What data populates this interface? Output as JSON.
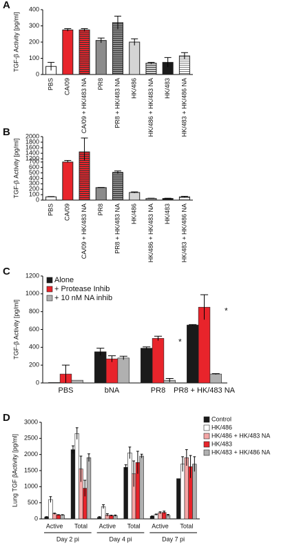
{
  "chart_data": [
    {
      "type": "bar",
      "panel": "A",
      "ylabel": "TGF-β Activity [pg/ml]",
      "categories": [
        "PBS",
        "CA/09",
        "CA/09 + HK/483 NA",
        "PR8",
        "PR8 + HK/483 NA",
        "HK/486",
        "HK/486 + HK/483 NA",
        "HK/483",
        "HK/483 + HK/486 NA"
      ],
      "values": [
        50,
        275,
        275,
        210,
        320,
        200,
        70,
        75,
        115
      ],
      "errors": [
        25,
        8,
        8,
        15,
        40,
        20,
        5,
        30,
        20
      ],
      "colors": [
        "#ffffff",
        "#e8242b",
        "#e8242b",
        "#8c8c8c",
        "#8c8c8c",
        "#d4d4d4",
        "#d4d4d4",
        "#1a1a1a",
        "#ffffff"
      ],
      "hatched": [
        false,
        false,
        true,
        false,
        true,
        false,
        true,
        false,
        true
      ],
      "ylim": [
        0,
        400
      ],
      "yticks": [
        0,
        100,
        200,
        300,
        400
      ]
    },
    {
      "type": "bar",
      "panel": "B",
      "ylabel": "TGF-β Activity [pg/ml]",
      "categories": [
        "PBS",
        "CA/09",
        "CA/09 + HK/483 NA",
        "PR8",
        "PR8 + HK/483 NA",
        "HK/486",
        "HK/486 + HK/483 NA",
        "HK/483",
        "HK/483 + HK/486 NA"
      ],
      "values": [
        60,
        700,
        1450,
        230,
        510,
        140,
        30,
        30,
        60
      ],
      "errors": [
        5,
        5,
        500,
        3,
        25,
        10,
        5,
        5,
        10
      ],
      "colors": [
        "#ffffff",
        "#e8242b",
        "#e8242b",
        "#8c8c8c",
        "#8c8c8c",
        "#d4d4d4",
        "#d4d4d4",
        "#1a1a1a",
        "#ffffff"
      ],
      "hatched": [
        false,
        false,
        true,
        false,
        true,
        false,
        true,
        false,
        true
      ],
      "ylim": [
        0,
        2000
      ],
      "ybreak": [
        700,
        1200
      ],
      "yticks": [
        0,
        100,
        200,
        300,
        400,
        500,
        600,
        700,
        1200,
        1400,
        1600,
        1800,
        2000
      ]
    },
    {
      "type": "grouped_bar",
      "panel": "C",
      "ylabel": "TGF-β Activity [pg/ml]",
      "categories": [
        "PBS",
        "bNA",
        "PR8",
        "PR8 + HK/483 NA"
      ],
      "series": [
        {
          "name": "Alone",
          "color": "#1a1a1a",
          "values": [
            5,
            350,
            390,
            650
          ],
          "errors": [
            null,
            40,
            15,
            5
          ]
        },
        {
          "name": "+ Protease Inhib",
          "color": "#e8242b",
          "values": [
            100,
            270,
            500,
            850
          ],
          "errors": [
            100,
            35,
            25,
            140
          ]
        },
        {
          "name": "+ 10 nM NA inhib",
          "color": "#b0b0b0",
          "values": [
            30,
            280,
            30,
            100
          ],
          "errors": [
            null,
            20,
            20,
            5
          ]
        }
      ],
      "annotations": [
        {
          "text": "*",
          "category": 2
        },
        {
          "text": "*",
          "category": 3
        }
      ],
      "legend": "top-left",
      "ylim": [
        0,
        1200
      ],
      "yticks": [
        0,
        200,
        400,
        600,
        800,
        1000,
        1200
      ]
    },
    {
      "type": "grouped_bar",
      "panel": "D",
      "ylabel": "Lung TGF βActivity [pg/ml]",
      "categories": [
        "Active",
        "Total",
        "Active",
        "Total",
        "Active",
        "Total"
      ],
      "groups": [
        "Day 2 pi",
        "Day 4 pi",
        "Day 7 pi"
      ],
      "series": [
        {
          "name": "Control",
          "color": "#1a1a1a",
          "values": [
            60,
            2150,
            50,
            1600,
            80,
            1250
          ],
          "errors": [
            10,
            120,
            20,
            80,
            10,
            null
          ]
        },
        {
          "name": "HK/486",
          "color": "#ffffff",
          "values": [
            600,
            2650,
            380,
            2050,
            130,
            1700
          ],
          "errors": [
            90,
            180,
            60,
            180,
            20,
            230
          ]
        },
        {
          "name": "HK/486 + HK/483 NA",
          "color": "#f4a6a6",
          "values": [
            160,
            1550,
            120,
            1400,
            190,
            1900
          ],
          "errors": [
            20,
            400,
            40,
            400,
            30,
            250
          ]
        },
        {
          "name": "HK/483",
          "color": "#e8242b",
          "values": [
            120,
            950,
            100,
            1750,
            200,
            1620
          ],
          "errors": [
            10,
            250,
            15,
            350,
            40,
            350
          ]
        },
        {
          "name": "HK/483 + HK/486 NA",
          "color": "#b0b0b0",
          "values": [
            120,
            1900,
            100,
            1950,
            110,
            1700
          ],
          "errors": [
            10,
            120,
            20,
            60,
            30,
            230
          ]
        }
      ],
      "legend": "right",
      "ylim": [
        0,
        3000
      ],
      "yticks": [
        0,
        500,
        1000,
        1500,
        2000,
        2500,
        3000
      ]
    }
  ]
}
